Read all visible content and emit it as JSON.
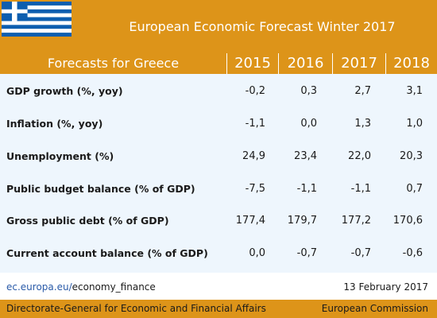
{
  "header": {
    "title": "European Economic Forecast Winter 2017",
    "flag_icon": "greece-flag-icon",
    "colors": {
      "accent": "#dd9419",
      "table_bg": "#eef6fd",
      "flag_blue": "#0d5eaf"
    }
  },
  "table": {
    "label_header": "Forecasts for Greece",
    "years": [
      "2015",
      "2016",
      "2017",
      "2018"
    ],
    "rows": [
      {
        "label": "GDP growth (%, yoy)",
        "values": [
          "-0,2",
          "0,3",
          "2,7",
          "3,1"
        ]
      },
      {
        "label": "Inflation (%, yoy)",
        "values": [
          "-1,1",
          "0,0",
          "1,3",
          "1,0"
        ]
      },
      {
        "label": "Unemployment (%)",
        "values": [
          "24,9",
          "23,4",
          "22,0",
          "20,3"
        ]
      },
      {
        "label": "Public budget balance (% of GDP)",
        "values": [
          "-7,5",
          "-1,1",
          "-1,1",
          "0,7"
        ]
      },
      {
        "label": "Gross public debt (% of GDP)",
        "values": [
          "177,4",
          "179,7",
          "177,2",
          "170,6"
        ]
      },
      {
        "label": "Current account balance (% of GDP)",
        "values": [
          "0,0",
          "-0,7",
          "-0,7",
          "-0,6"
        ]
      }
    ]
  },
  "footer": {
    "link_prefix": "ec.europa.eu/",
    "link_suffix": "economy_finance",
    "date": "13 February 2017",
    "dg": "Directorate-General for Economic and Financial Affairs",
    "commission": "European Commission"
  }
}
